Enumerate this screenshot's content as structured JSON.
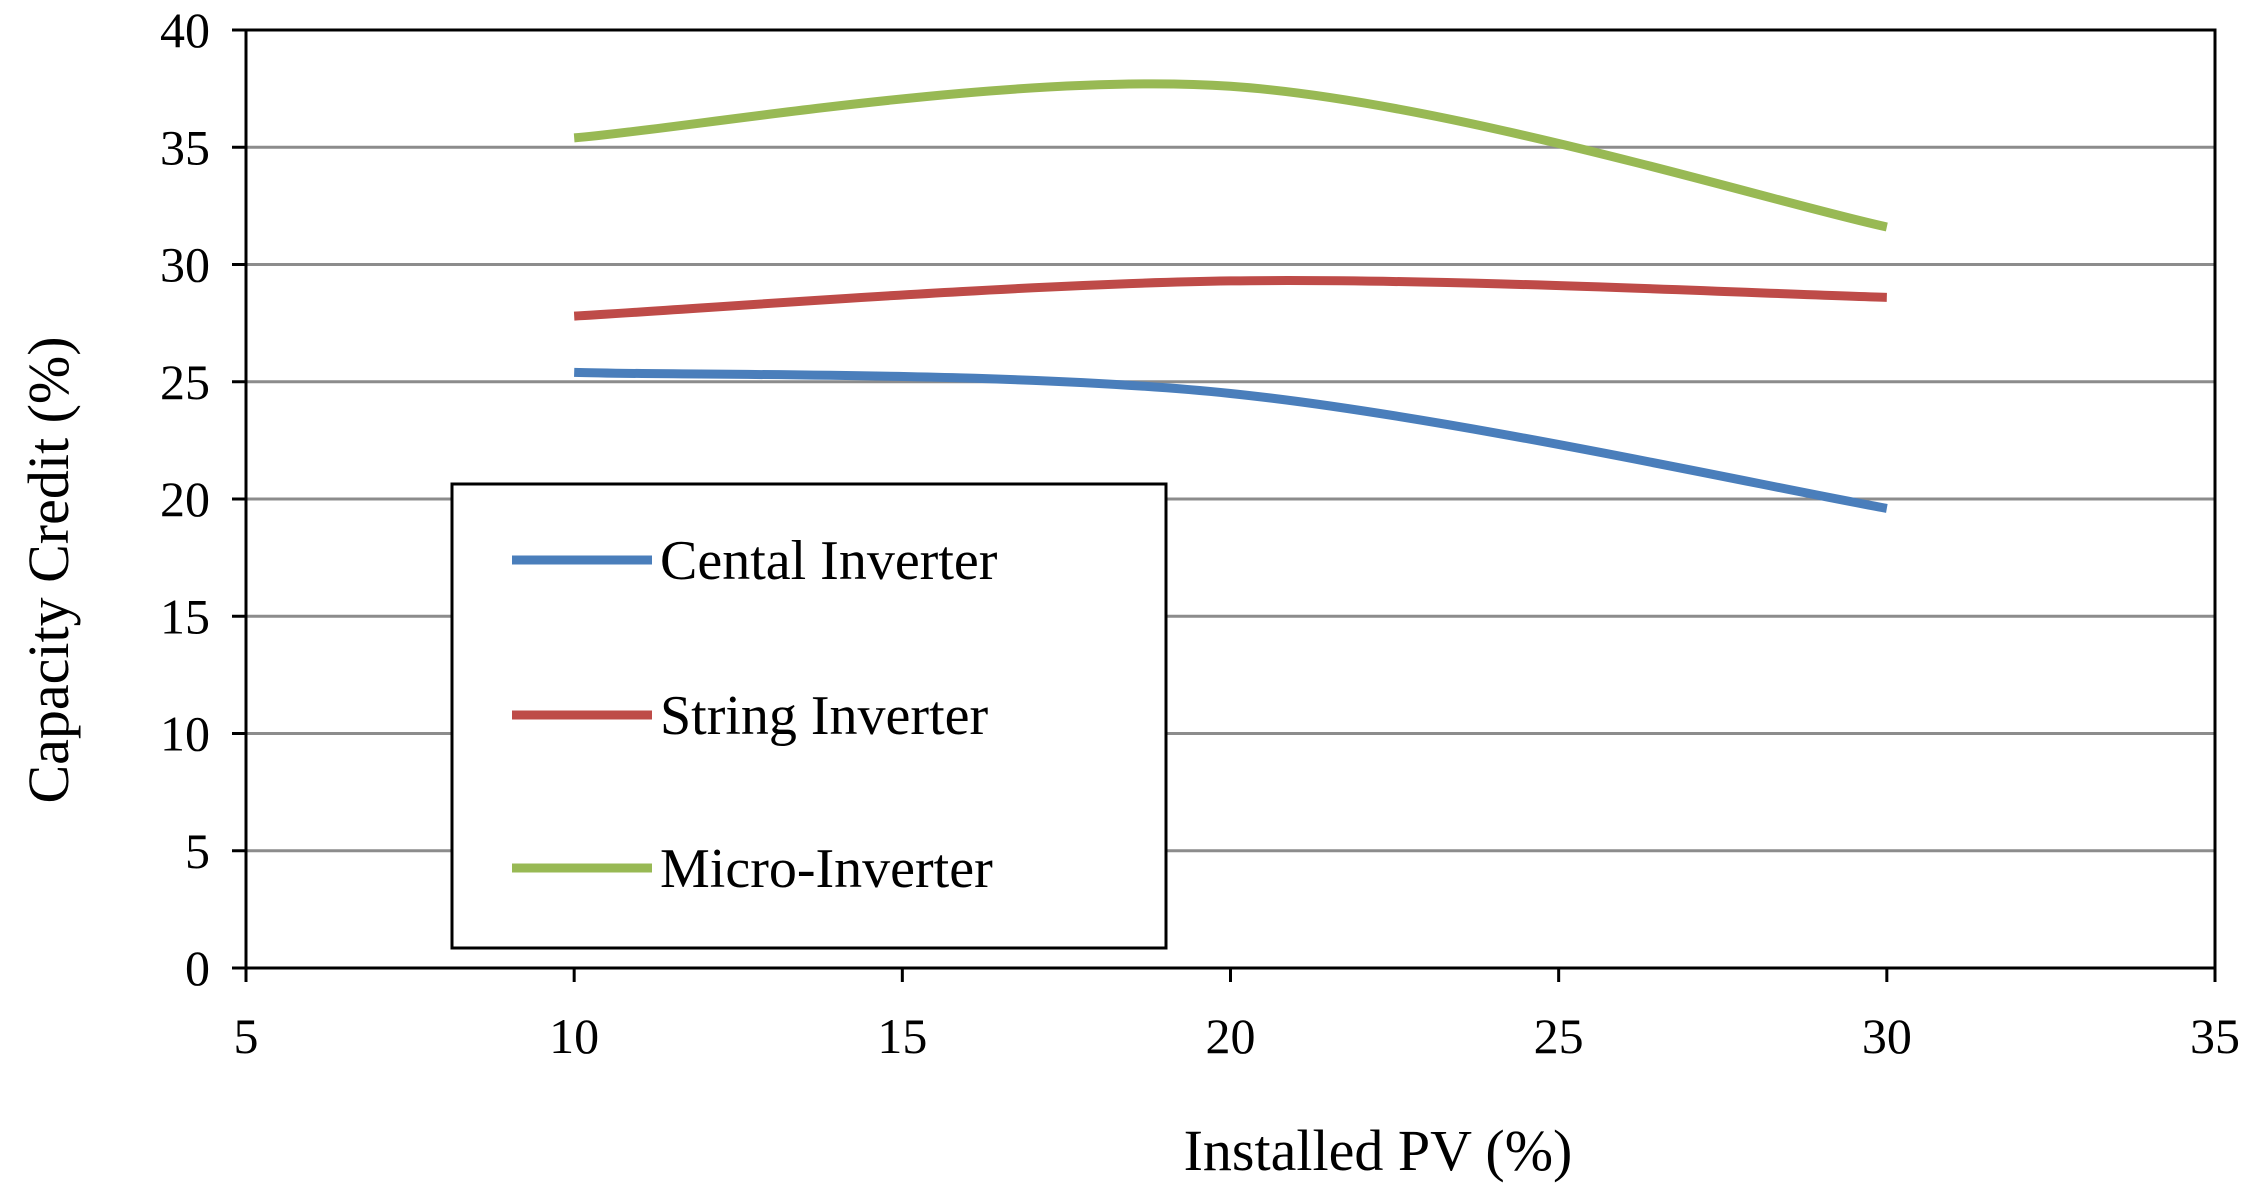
{
  "chart_data": {
    "type": "line",
    "title": "",
    "xlabel": "Installed  PV (%)",
    "ylabel": "Capacity  Credit  (%)",
    "xlim": [
      5,
      35
    ],
    "ylim": [
      0,
      40
    ],
    "x_ticks": [
      5,
      10,
      15,
      20,
      25,
      30,
      35
    ],
    "y_ticks": [
      0,
      5,
      10,
      15,
      20,
      25,
      30,
      35,
      40
    ],
    "grid": "horizontal",
    "legend_position": "lower-left",
    "series": [
      {
        "name": "Cental Inverter",
        "color": "#4a7ebb",
        "x": [
          10,
          20,
          30
        ],
        "values": [
          25.4,
          24.5,
          19.6
        ]
      },
      {
        "name": "String Inverter",
        "color": "#be4b48",
        "x": [
          10,
          20,
          30
        ],
        "values": [
          27.8,
          29.3,
          28.6
        ]
      },
      {
        "name": "Micro-Inverter",
        "color": "#98b954",
        "x": [
          10,
          20,
          30
        ],
        "values": [
          35.4,
          37.6,
          31.6
        ]
      }
    ]
  }
}
